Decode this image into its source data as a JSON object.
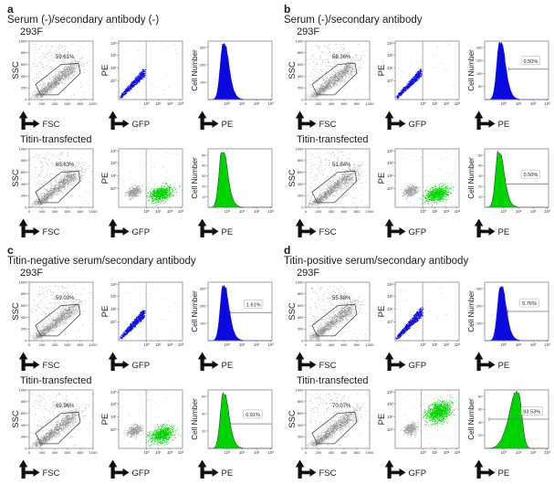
{
  "colors": {
    "blue": "#0a0ae0",
    "green": "#00d400",
    "gray_cluster": "#a0a0a0",
    "cloud": "#b5b5b5",
    "cloud_core": "#8d8d8d",
    "box_border": "#7a7a7a",
    "gate": "#4a4a4a",
    "marker_line": "#6f6f6f",
    "text": "#1a1a1a"
  },
  "axis": {
    "scatter_ticks": [
      "0",
      "200",
      "400",
      "600",
      "800",
      "1000"
    ],
    "log_ticks": [
      "10⁰",
      "10¹",
      "10²",
      "10³"
    ]
  },
  "chart_data": [
    {
      "panel": "a",
      "title": "Serum (-)/secondary antibody (-)",
      "rows": [
        {
          "label": "293F",
          "fsc_ssc": {
            "type": "scatter",
            "xlabel": "FSC",
            "ylabel": "SSC",
            "xlim": [
              0,
              1000
            ],
            "ylim": [
              0,
              1000
            ],
            "gate_pct": "59.61%"
          },
          "gfp_pe": {
            "type": "scatter-log",
            "xlabel": "GFP",
            "ylabel": "PE",
            "gate_line": 0.43,
            "clusters": [
              {
                "kind": "streak",
                "color": "blue",
                "n": 750,
                "x0": 0.02,
                "y0": 0.03,
                "x1": 0.4,
                "y1": 0.46,
                "spread": 0.05
              },
              {
                "kind": "noise",
                "color": "gray",
                "n": 40
              }
            ]
          },
          "pe_hist": {
            "type": "histogram",
            "xlabel": "PE",
            "ylabel": "Cell Number",
            "color": "blue",
            "yticks": [
              100,
              200,
              300
            ],
            "peak": 0.24,
            "peak_h": 0.94,
            "tail": "right",
            "marker": null
          }
        },
        {
          "label": "Titin-transfected",
          "fsc_ssc": {
            "type": "scatter",
            "xlabel": "FSC",
            "ylabel": "SSC",
            "xlim": [
              0,
              1000
            ],
            "ylim": [
              0,
              1000
            ],
            "gate_pct": "65.63%"
          },
          "gfp_pe": {
            "type": "scatter-log",
            "xlabel": "GFP",
            "ylabel": "PE",
            "gate_line": 0.43,
            "clusters": [
              {
                "kind": "blob",
                "color": "gray",
                "n": 420,
                "cx": 0.24,
                "cy": 0.26,
                "rx": 0.1,
                "ry": 0.08
              },
              {
                "kind": "blob",
                "color": "green",
                "n": 880,
                "cx": 0.66,
                "cy": 0.23,
                "rx": 0.16,
                "ry": 0.11
              },
              {
                "kind": "noise",
                "color": "gray",
                "n": 50
              }
            ]
          },
          "pe_hist": {
            "type": "histogram",
            "xlabel": "PE",
            "ylabel": "Cell Number",
            "color": "green",
            "yticks": [
              10,
              20,
              30,
              40,
              50
            ],
            "peak": 0.22,
            "peak_h": 0.95,
            "tail": "right",
            "marker": null
          }
        }
      ]
    },
    {
      "panel": "b",
      "title": "Serum (-)/secondary antibody",
      "rows": [
        {
          "label": "293F",
          "fsc_ssc": {
            "type": "scatter",
            "xlabel": "FSC",
            "ylabel": "SSC",
            "xlim": [
              0,
              1000
            ],
            "ylim": [
              0,
              1000
            ],
            "gate_pct": "58.36%"
          },
          "gfp_pe": {
            "type": "scatter-log",
            "xlabel": "GFP",
            "ylabel": "PE",
            "gate_line": 0.43,
            "clusters": [
              {
                "kind": "streak",
                "color": "blue",
                "n": 750,
                "x0": 0.02,
                "y0": 0.03,
                "x1": 0.4,
                "y1": 0.46,
                "spread": 0.05
              },
              {
                "kind": "noise",
                "color": "gray",
                "n": 40
              }
            ]
          },
          "pe_hist": {
            "type": "histogram",
            "xlabel": "PE",
            "ylabel": "Cell Number",
            "color": "blue",
            "yticks": [
              50,
              100,
              150,
              200
            ],
            "peak": 0.24,
            "peak_h": 0.97,
            "tail": "right",
            "marker": {
              "pct": "0.50%",
              "line_y": 0.52,
              "line_x0": 0.38,
              "label_x": 0.72,
              "label_y": 0.66
            }
          }
        },
        {
          "label": "Titin-transfected",
          "fsc_ssc": {
            "type": "scatter",
            "xlabel": "FSC",
            "ylabel": "SSC",
            "xlim": [
              0,
              1000
            ],
            "ylim": [
              0,
              1000
            ],
            "gate_pct": "51.84%"
          },
          "gfp_pe": {
            "type": "scatter-log",
            "xlabel": "GFP",
            "ylabel": "PE",
            "gate_line": 0.43,
            "clusters": [
              {
                "kind": "blob",
                "color": "gray",
                "n": 420,
                "cx": 0.24,
                "cy": 0.28,
                "rx": 0.1,
                "ry": 0.08
              },
              {
                "kind": "blob",
                "color": "green",
                "n": 880,
                "cx": 0.66,
                "cy": 0.23,
                "rx": 0.16,
                "ry": 0.11
              },
              {
                "kind": "noise",
                "color": "gray",
                "n": 50
              }
            ]
          },
          "pe_hist": {
            "type": "histogram",
            "xlabel": "PE",
            "ylabel": "Cell Number",
            "color": "green",
            "yticks": [
              10,
              20,
              30,
              40,
              50
            ],
            "peak": 0.22,
            "peak_h": 0.94,
            "tail": "right",
            "marker": {
              "pct": "0.50%",
              "line_y": 0.4,
              "line_x0": 0.33,
              "label_x": 0.72,
              "label_y": 0.56
            }
          }
        }
      ]
    },
    {
      "panel": "c",
      "title": "Titin-negative serum/secondary antibody",
      "rows": [
        {
          "label": "293F",
          "fsc_ssc": {
            "type": "scatter",
            "xlabel": "FSC",
            "ylabel": "SSC",
            "xlim": [
              0,
              1000
            ],
            "ylim": [
              0,
              1000
            ],
            "gate_pct": "59.03%"
          },
          "gfp_pe": {
            "type": "scatter-log",
            "xlabel": "GFP",
            "ylabel": "PE",
            "gate_line": 0.43,
            "clusters": [
              {
                "kind": "streak",
                "color": "blue",
                "n": 850,
                "x0": 0.02,
                "y0": 0.03,
                "x1": 0.4,
                "y1": 0.47,
                "spread": 0.055
              },
              {
                "kind": "noise",
                "color": "gray",
                "n": 40
              }
            ]
          },
          "pe_hist": {
            "type": "histogram",
            "xlabel": "PE",
            "ylabel": "Cell Number",
            "color": "blue",
            "yticks": [
              100,
              200,
              300
            ],
            "peak": 0.24,
            "peak_h": 0.93,
            "tail": "right",
            "marker": {
              "pct": "1.61%",
              "line_y": 0.48,
              "line_x0": 0.35,
              "label_x": 0.71,
              "label_y": 0.62
            }
          }
        },
        {
          "label": "Titin-transfected",
          "fsc_ssc": {
            "type": "scatter",
            "xlabel": "FSC",
            "ylabel": "SSC",
            "xlim": [
              0,
              1000
            ],
            "ylim": [
              0,
              1000
            ],
            "gate_pct": "69.96%"
          },
          "gfp_pe": {
            "type": "scatter-log",
            "xlabel": "GFP",
            "ylabel": "PE",
            "gate_line": 0.43,
            "clusters": [
              {
                "kind": "blob",
                "color": "gray",
                "n": 420,
                "cx": 0.25,
                "cy": 0.3,
                "rx": 0.1,
                "ry": 0.08
              },
              {
                "kind": "blob",
                "color": "green",
                "n": 880,
                "cx": 0.67,
                "cy": 0.24,
                "rx": 0.16,
                "ry": 0.12
              },
              {
                "kind": "noise",
                "color": "gray",
                "n": 50
              }
            ]
          },
          "pe_hist": {
            "type": "histogram",
            "xlabel": "PE",
            "ylabel": "Cell Number",
            "color": "green",
            "yticks": [
              20,
              40,
              60
            ],
            "peak": 0.24,
            "peak_h": 0.93,
            "tail": "right",
            "marker": {
              "pct": "0.91%",
              "line_y": 0.42,
              "line_x0": 0.35,
              "label_x": 0.7,
              "label_y": 0.58
            }
          }
        }
      ]
    },
    {
      "panel": "d",
      "title": "Titin-positive serum/secondary antibody",
      "rows": [
        {
          "label": "293F",
          "fsc_ssc": {
            "type": "scatter",
            "xlabel": "FSC",
            "ylabel": "SSC",
            "xlim": [
              0,
              1000
            ],
            "ylim": [
              0,
              1000
            ],
            "gate_pct": "55.88%"
          },
          "gfp_pe": {
            "type": "scatter-log",
            "xlabel": "GFP",
            "ylabel": "PE",
            "gate_line": 0.43,
            "clusters": [
              {
                "kind": "streak",
                "color": "blue",
                "n": 950,
                "x0": 0.02,
                "y0": 0.04,
                "x1": 0.42,
                "y1": 0.5,
                "spread": 0.06
              },
              {
                "kind": "noise",
                "color": "gray",
                "n": 40
              }
            ]
          },
          "pe_hist": {
            "type": "histogram",
            "xlabel": "PE",
            "ylabel": "Cell Number",
            "color": "blue",
            "yticks": [
              100,
              200,
              300
            ],
            "peak": 0.25,
            "peak_h": 0.93,
            "tail": "right",
            "marker": {
              "pct": "5.76%",
              "line_y": 0.5,
              "line_x0": 0.36,
              "label_x": 0.7,
              "label_y": 0.64
            }
          }
        },
        {
          "label": "Titin-transfected",
          "fsc_ssc": {
            "type": "scatter",
            "xlabel": "FSC",
            "ylabel": "SSC",
            "xlim": [
              0,
              1000
            ],
            "ylim": [
              0,
              1000
            ],
            "gate_pct": "70.07%"
          },
          "gfp_pe": {
            "type": "scatter-log",
            "xlabel": "GFP",
            "ylabel": "PE",
            "gate_line": 0.41,
            "clusters": [
              {
                "kind": "blob",
                "color": "gray",
                "n": 400,
                "cx": 0.24,
                "cy": 0.33,
                "rx": 0.09,
                "ry": 0.08
              },
              {
                "kind": "blob",
                "color": "green",
                "n": 1150,
                "cx": 0.68,
                "cy": 0.62,
                "rx": 0.18,
                "ry": 0.15
              },
              {
                "kind": "noise",
                "color": "gray",
                "n": 45
              }
            ]
          },
          "pe_hist": {
            "type": "histogram",
            "xlabel": "PE",
            "ylabel": "Cell Number",
            "color": "green",
            "yticks": [
              20,
              40,
              60,
              80
            ],
            "peak": 0.52,
            "peak_h": 0.95,
            "tail": "left",
            "marker": {
              "pct": "93.53%",
              "line_y": 0.5,
              "line_x0": 0.07,
              "label_x": 0.74,
              "label_y": 0.63
            }
          }
        }
      ]
    }
  ]
}
